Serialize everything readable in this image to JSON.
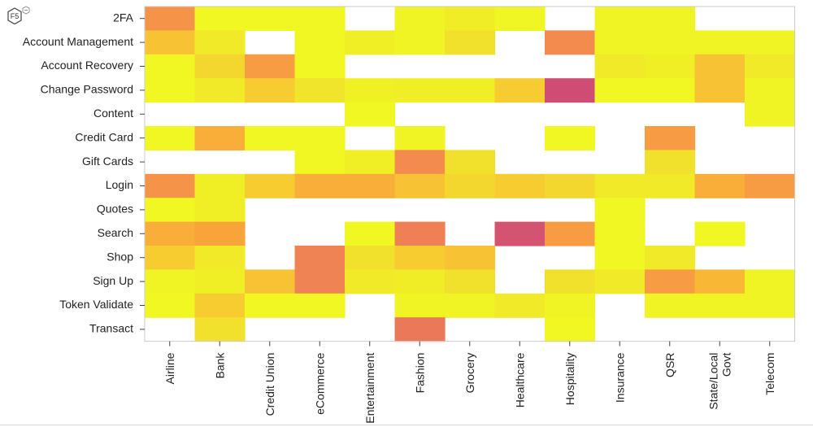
{
  "logo": {
    "text": "F5"
  },
  "chart_data": {
    "type": "heatmap",
    "title": "",
    "xlabel": "",
    "ylabel": "",
    "x_categories": [
      "Airline",
      "Bank",
      "Credit Union",
      "eCommerce",
      "Entertainment",
      "Fashion",
      "Grocery",
      "Healthcare",
      "Hospitality",
      "Insurance",
      "QSR",
      "State/Local Govt",
      "Telecom"
    ],
    "y_categories": [
      "2FA",
      "Account Management",
      "Account Recovery",
      "Change Password",
      "Content",
      "Credit Card",
      "Gift Cards",
      "Login",
      "Quotes",
      "Search",
      "Shop",
      "Sign Up",
      "Token Validate",
      "Transact"
    ],
    "value_range": [
      0,
      1
    ],
    "colorscale": [
      "#f0f921",
      "#f0e82a",
      "#f7c532",
      "#f9a43b",
      "#f28851",
      "#e8705c",
      "#cc4778"
    ],
    "missing": "blank",
    "values": [
      [
        0.6,
        0.02,
        0.02,
        0.02,
        null,
        0.05,
        0.12,
        0.03,
        null,
        0.05,
        0.05,
        null,
        null
      ],
      [
        0.35,
        0.15,
        null,
        0.02,
        0.1,
        0.05,
        0.2,
        null,
        0.65,
        0.05,
        0.05,
        0.05,
        0.05
      ],
      [
        0.02,
        0.25,
        0.55,
        0.02,
        null,
        null,
        null,
        null,
        null,
        0.15,
        0.1,
        0.35,
        0.15
      ],
      [
        0.02,
        0.15,
        0.3,
        0.18,
        0.08,
        0.1,
        0.1,
        0.3,
        0.98,
        0.02,
        0.02,
        0.35,
        0.05
      ],
      [
        null,
        null,
        null,
        null,
        0.02,
        null,
        null,
        null,
        null,
        null,
        null,
        null,
        0.05
      ],
      [
        0.02,
        0.45,
        0.02,
        0.02,
        null,
        0.05,
        null,
        null,
        0.02,
        null,
        0.55,
        null,
        null
      ],
      [
        null,
        null,
        null,
        0.02,
        0.1,
        0.65,
        0.2,
        null,
        null,
        null,
        0.2,
        null,
        null
      ],
      [
        0.6,
        0.1,
        0.3,
        0.45,
        0.45,
        0.35,
        0.25,
        0.3,
        0.25,
        0.15,
        0.15,
        0.45,
        0.55
      ],
      [
        0.02,
        0.1,
        null,
        null,
        null,
        null,
        null,
        null,
        null,
        0.02,
        null,
        null,
        null
      ],
      [
        0.45,
        0.5,
        null,
        null,
        0.02,
        0.72,
        null,
        0.95,
        0.55,
        0.02,
        null,
        0.02,
        null
      ],
      [
        0.3,
        0.15,
        null,
        0.7,
        0.2,
        0.3,
        0.35,
        null,
        null,
        0.02,
        0.15,
        null,
        null
      ],
      [
        0.05,
        0.1,
        0.35,
        0.7,
        0.15,
        0.12,
        0.2,
        null,
        0.2,
        0.15,
        0.55,
        0.4,
        0.05
      ],
      [
        0.02,
        0.3,
        0.02,
        0.02,
        null,
        0.05,
        0.05,
        0.15,
        0.05,
        null,
        0.05,
        0.05,
        0.05
      ],
      [
        null,
        0.2,
        null,
        null,
        null,
        0.78,
        null,
        null,
        0.02,
        null,
        null,
        null,
        null
      ]
    ]
  }
}
